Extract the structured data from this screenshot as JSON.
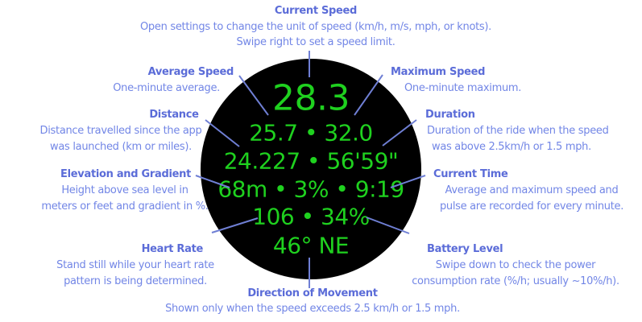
{
  "watch_face": {
    "current_speed": "28.3",
    "avg_max": "25.7 • 32.0",
    "distance_duration": "24.227 • 56'59\"",
    "elev_grad_time": "68m • 3% • 9:19",
    "hr_battery": "106 • 34%",
    "direction": "46° NE"
  },
  "labels": {
    "current_speed": {
      "title": "Current Speed",
      "lines": [
        "Open settings to change the unit of speed (km/h, m/s, mph, or knots).",
        "Swipe right to set a speed limit."
      ]
    },
    "average_speed": {
      "title": "Average Speed",
      "lines": [
        "One-minute average."
      ]
    },
    "maximum_speed": {
      "title": "Maximum Speed",
      "lines": [
        "One-minute maximum."
      ]
    },
    "distance": {
      "title": "Distance",
      "lines": [
        "Distance travelled since the app",
        "was launched (km or miles)."
      ]
    },
    "duration": {
      "title": "Duration",
      "lines": [
        "Duration of the ride when the speed",
        "was above 2.5km/h or 1.5 mph."
      ]
    },
    "elevation": {
      "title": "Elevation and Gradient",
      "lines": [
        "Height above sea level in",
        "meters or feet and gradient in %."
      ]
    },
    "current_time": {
      "title": "Current Time",
      "lines": [
        "Average and maximum speed and",
        "pulse are recorded for every minute."
      ]
    },
    "heart_rate": {
      "title": "Heart Rate",
      "lines": [
        "Stand still while your heart rate",
        "pattern is being determined."
      ]
    },
    "battery": {
      "title": "Battery Level",
      "lines": [
        "Swipe down to check the power",
        "consumption rate (%/h; usually ~10%/h)."
      ]
    },
    "direction": {
      "title": "Direction of Movement",
      "lines": [
        "Shown only when the speed exceeds 2.5 km/h or 1.5 mph."
      ]
    }
  },
  "colors": {
    "title": "#5b6cd8",
    "description": "#7286e6",
    "display_text": "#1fd11f",
    "watch_bg": "#000000",
    "leader_line": "#6f7fd4"
  }
}
